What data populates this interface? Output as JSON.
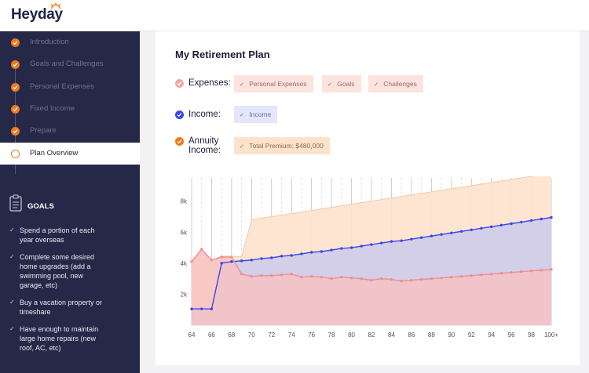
{
  "brand": {
    "name": "Heyday"
  },
  "sidebar": {
    "steps": [
      {
        "label": "Introduction",
        "state": "done"
      },
      {
        "label": "Goals and Challenges",
        "state": "done"
      },
      {
        "label": "Personal Expenses",
        "state": "done"
      },
      {
        "label": "Fixed Income",
        "state": "done"
      },
      {
        "label": "Prepare",
        "state": "done"
      },
      {
        "label": "Plan Overview",
        "state": "active"
      }
    ],
    "goals_title": "GOALS",
    "goals": [
      "Spend a portion of each year overseas",
      "Complete some desired home upgrades (add a swimming pool, new garage, etc)",
      "Buy a vacation property or timeshare",
      "Have enough to maintain large home repairs (new roof, AC, etc)"
    ]
  },
  "plan": {
    "title": "My Retirement Plan",
    "expenses": {
      "label": "Expenses:",
      "chips": [
        "Personal Expenses",
        "Goals",
        "Challenges"
      ]
    },
    "income": {
      "label": "Income:",
      "chips": [
        "Income"
      ]
    },
    "annuity": {
      "label_line1": "Annuity",
      "label_line2": "Income:",
      "chips": [
        "Total Premium: $480,000"
      ]
    }
  },
  "colors": {
    "accent": "#f07a1c",
    "expenses": "#f3a9a5",
    "income": "#3b46e8",
    "annuity": "#f07a1c",
    "sidebar_bg": "#262847"
  },
  "chart_data": {
    "type": "area",
    "x": [
      "64",
      "65",
      "66",
      "67",
      "68",
      "69",
      "70",
      "71",
      "72",
      "73",
      "74",
      "75",
      "76",
      "77",
      "78",
      "79",
      "80",
      "81",
      "82",
      "83",
      "84",
      "85",
      "86",
      "87",
      "88",
      "89",
      "90",
      "91",
      "92",
      "93",
      "94",
      "95",
      "96",
      "97",
      "98",
      "99",
      "100+"
    ],
    "x_tick_labels": [
      "64",
      "66",
      "68",
      "70",
      "72",
      "74",
      "76",
      "78",
      "80",
      "82",
      "84",
      "86",
      "88",
      "90",
      "92",
      "94",
      "96",
      "98",
      "100+"
    ],
    "y_tick_labels": [
      "2k",
      "4k",
      "6k",
      "8k"
    ],
    "ylim": [
      0,
      9500
    ],
    "series": [
      {
        "name": "Annuity Income",
        "values": [
          4100,
          4900,
          4200,
          4450,
          4450,
          4400,
          6800,
          6900,
          7000,
          7100,
          7200,
          7300,
          7400,
          7500,
          7600,
          7700,
          7800,
          7900,
          8000,
          8100,
          8200,
          8300,
          8400,
          8500,
          8600,
          8700,
          8800,
          8900,
          9000,
          9100,
          9200,
          9300,
          9400,
          9500,
          9600,
          9700,
          9800
        ]
      },
      {
        "name": "Income",
        "values": [
          1050,
          1050,
          1050,
          4000,
          4100,
          4150,
          4200,
          4300,
          4350,
          4450,
          4500,
          4600,
          4700,
          4750,
          4850,
          4950,
          5000,
          5100,
          5200,
          5300,
          5400,
          5450,
          5550,
          5650,
          5750,
          5850,
          5950,
          6050,
          6150,
          6250,
          6350,
          6450,
          6550,
          6650,
          6750,
          6850,
          6950
        ]
      },
      {
        "name": "Expenses",
        "values": [
          4100,
          4900,
          4200,
          4400,
          4400,
          3300,
          3150,
          3200,
          3200,
          3250,
          3300,
          3100,
          3150,
          3100,
          3000,
          3100,
          3050,
          3000,
          2900,
          3000,
          2950,
          2850,
          2900,
          2950,
          3000,
          3050,
          3100,
          3150,
          3200,
          3250,
          3300,
          3350,
          3400,
          3450,
          3500,
          3550,
          3600
        ]
      }
    ]
  }
}
